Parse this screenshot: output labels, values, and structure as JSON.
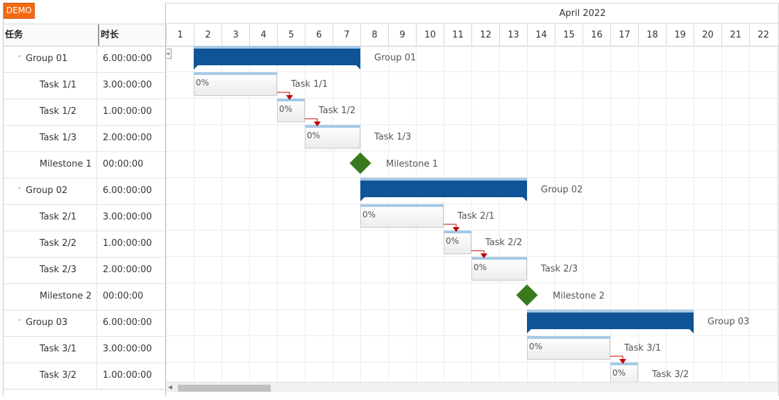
{
  "badge": "DEMO",
  "grid": {
    "col_task": "任务",
    "col_duration": "时长",
    "rows": [
      {
        "name": "Group 01",
        "duration": "6.00:00:00",
        "group": true
      },
      {
        "name": "Task 1/1",
        "duration": "3.00:00:00",
        "group": false
      },
      {
        "name": "Task 1/2",
        "duration": "1.00:00:00",
        "group": false
      },
      {
        "name": "Task 1/3",
        "duration": "2.00:00:00",
        "group": false
      },
      {
        "name": "Milestone 1",
        "duration": "00:00:00",
        "group": false
      },
      {
        "name": "Group 02",
        "duration": "6.00:00:00",
        "group": true
      },
      {
        "name": "Task 2/1",
        "duration": "3.00:00:00",
        "group": false
      },
      {
        "name": "Task 2/2",
        "duration": "1.00:00:00",
        "group": false
      },
      {
        "name": "Task 2/3",
        "duration": "2.00:00:00",
        "group": false
      },
      {
        "name": "Milestone 2",
        "duration": "00:00:00",
        "group": false
      },
      {
        "name": "Group 03",
        "duration": "6.00:00:00",
        "group": true
      },
      {
        "name": "Task 3/1",
        "duration": "3.00:00:00",
        "group": false
      },
      {
        "name": "Task 3/2",
        "duration": "1.00:00:00",
        "group": false
      }
    ]
  },
  "timeline": {
    "month": "April 2022",
    "days": [
      "1",
      "2",
      "3",
      "4",
      "5",
      "6",
      "7",
      "8",
      "9",
      "10",
      "11",
      "12",
      "13",
      "14",
      "15",
      "16",
      "17",
      "18",
      "19",
      "20",
      "21",
      "22"
    ],
    "items": [
      {
        "kind": "group",
        "label": "Group 01",
        "start_day": 2,
        "end_day": 8
      },
      {
        "kind": "task",
        "label": "Task 1/1",
        "pct": "0%",
        "start_day": 2,
        "end_day": 5
      },
      {
        "kind": "task",
        "label": "Task 1/2",
        "pct": "0%",
        "start_day": 5,
        "end_day": 6
      },
      {
        "kind": "task",
        "label": "Task 1/3",
        "pct": "0%",
        "start_day": 6,
        "end_day": 8
      },
      {
        "kind": "milestone",
        "label": "Milestone 1",
        "day": 8
      },
      {
        "kind": "group",
        "label": "Group 02",
        "start_day": 8,
        "end_day": 14
      },
      {
        "kind": "task",
        "label": "Task 2/1",
        "pct": "0%",
        "start_day": 8,
        "end_day": 11
      },
      {
        "kind": "task",
        "label": "Task 2/2",
        "pct": "0%",
        "start_day": 11,
        "end_day": 12
      },
      {
        "kind": "task",
        "label": "Task 2/3",
        "pct": "0%",
        "start_day": 12,
        "end_day": 14
      },
      {
        "kind": "milestone",
        "label": "Milestone 2",
        "day": 14
      },
      {
        "kind": "group",
        "label": "Group 03",
        "start_day": 14,
        "end_day": 20
      },
      {
        "kind": "task",
        "label": "Task 3/1",
        "pct": "0%",
        "start_day": 14,
        "end_day": 17
      },
      {
        "kind": "task",
        "label": "Task 3/2",
        "pct": "0%",
        "start_day": 17,
        "end_day": 18
      }
    ],
    "dependencies": [
      [
        1,
        2
      ],
      [
        2,
        3
      ],
      [
        6,
        7
      ],
      [
        7,
        8
      ],
      [
        11,
        12
      ]
    ]
  },
  "colors": {
    "group_bar": "#0e5497",
    "bar_top": "#a6c9e6",
    "milestone": "#3a7a1e",
    "dependency": "#c00000",
    "badge": "#f26a13"
  }
}
